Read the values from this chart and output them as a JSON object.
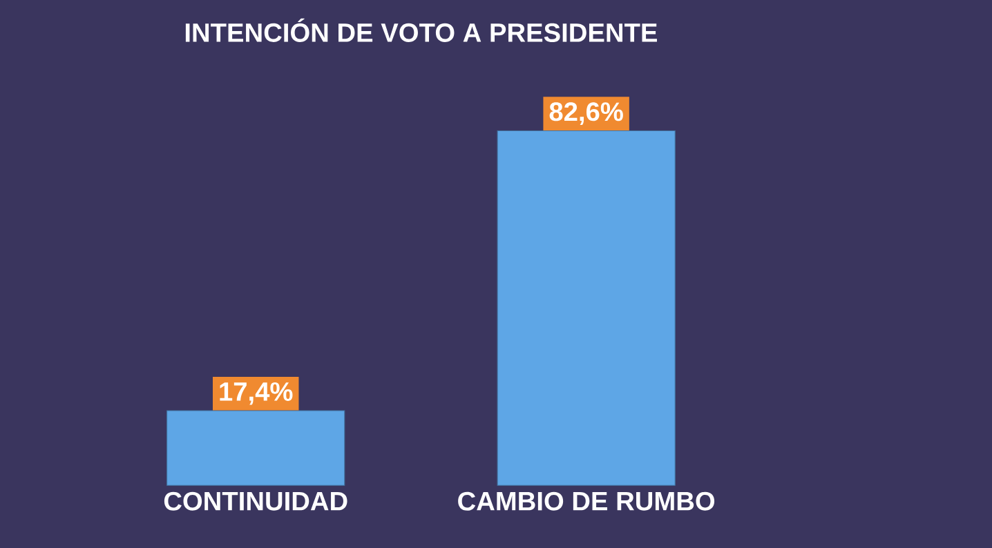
{
  "chart_data": {
    "type": "bar",
    "title": "INTENCIÓN DE VOTO A PRESIDENTE",
    "categories": [
      "CONTINUIDAD",
      "CAMBIO DE RUMBO"
    ],
    "values": [
      17.4,
      82.6
    ],
    "value_labels": [
      "17,4%",
      "82,6%"
    ],
    "color": "#5ea6e6"
  }
}
